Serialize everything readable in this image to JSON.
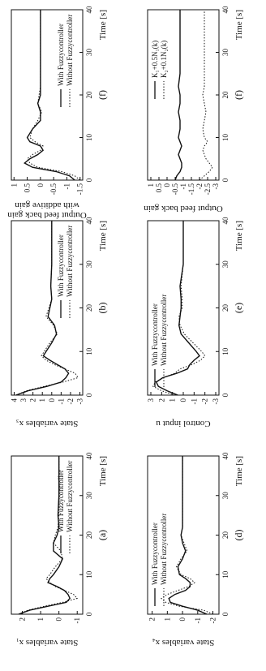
{
  "figure": {
    "legend_with": "With Fuzzycontroller",
    "legend_without": "Without Fuzzycontroller"
  },
  "chart_data": [
    {
      "id": "a",
      "type": "line",
      "caption": "(a)",
      "xlabel": "Time [s]",
      "ylabel": "State variables x₁",
      "xlim": [
        0,
        40
      ],
      "ylim": [
        -1.3,
        2.6
      ],
      "xticks": [
        0,
        10,
        20,
        30,
        40
      ],
      "yticks": [
        -1,
        0,
        1,
        2
      ],
      "legend": [
        "With Fuzzycontroller",
        "Without Fuzzycontroller"
      ],
      "legend_position": "bottom-right",
      "series": [
        {
          "name": "With Fuzzycontroller",
          "style": "solid",
          "x": [
            0,
            1,
            2,
            3,
            4,
            5,
            6,
            7,
            8,
            9,
            10,
            12,
            14,
            16,
            18,
            20,
            22,
            25,
            30,
            35,
            40
          ],
          "y": [
            2.2,
            1.6,
            0.6,
            -0.4,
            -0.6,
            -0.5,
            -0.3,
            0.1,
            0.6,
            0.5,
            0.3,
            0.0,
            -0.2,
            0.3,
            0.3,
            0.1,
            0.0,
            0.05,
            0.0,
            0.0,
            0.0
          ]
        },
        {
          "name": "Without Fuzzycontroller",
          "style": "dotted",
          "x": [
            0,
            1,
            2,
            3,
            4,
            5,
            6,
            7,
            8,
            9,
            10,
            12,
            14,
            16,
            18,
            20,
            22,
            25,
            30,
            35,
            40
          ],
          "y": [
            2.2,
            1.7,
            0.8,
            -0.2,
            -1.0,
            -0.8,
            -0.3,
            0.2,
            0.5,
            0.7,
            0.5,
            0.2,
            -0.2,
            -0.1,
            0.3,
            0.2,
            0.05,
            0.0,
            0.0,
            0.0,
            0.0
          ]
        }
      ]
    },
    {
      "id": "b",
      "type": "line",
      "caption": "(b)",
      "xlabel": "Time [s]",
      "ylabel": "State variables x₃",
      "xlim": [
        0,
        40
      ],
      "ylim": [
        -3.3,
        4.3
      ],
      "xticks": [
        0,
        10,
        20,
        30,
        40
      ],
      "yticks": [
        -3,
        -2,
        -1,
        0,
        1,
        2,
        3,
        4
      ],
      "legend": [
        "With Fuzzycontroller",
        "Without Fuzzycontroller"
      ],
      "legend_position": "bottom-right",
      "series": [
        {
          "name": "With Fuzzycontroller",
          "style": "solid",
          "x": [
            0,
            1,
            2,
            3,
            4,
            5,
            6,
            7,
            8,
            9,
            10,
            12,
            14,
            16,
            18,
            20,
            22,
            25,
            30,
            35,
            40
          ],
          "y": [
            3.8,
            2.5,
            0.5,
            -1.0,
            -1.5,
            -1.8,
            -1.4,
            -0.6,
            0.2,
            0.9,
            0.6,
            0.0,
            -0.5,
            -0.3,
            0.4,
            0.2,
            0.0,
            0.1,
            0.0,
            0.0,
            0.0
          ]
        },
        {
          "name": "Without Fuzzycontroller",
          "style": "dotted",
          "x": [
            0,
            1,
            2,
            3,
            4,
            5,
            6,
            7,
            8,
            9,
            10,
            12,
            14,
            16,
            18,
            20,
            22,
            25,
            30,
            35,
            40
          ],
          "y": [
            3.8,
            2.7,
            0.8,
            -1.2,
            -2.8,
            -2.5,
            -1.4,
            -0.3,
            0.6,
            1.1,
            0.8,
            0.2,
            -0.6,
            -0.2,
            0.6,
            0.3,
            0.0,
            0.1,
            0.0,
            0.0,
            0.0
          ]
        }
      ]
    },
    {
      "id": "f",
      "type": "line",
      "caption": "(f)",
      "xlabel": "Time [s]",
      "ylabel": "Output feed back gain",
      "ylabel_2": "with additive gain",
      "xlim": [
        0,
        40
      ],
      "ylim": [
        -1.6,
        1.1
      ],
      "xticks": [
        0,
        10,
        20,
        30,
        40
      ],
      "yticks": [
        -1.5,
        -1,
        -0.5,
        0,
        0.5,
        1
      ],
      "legend": [
        "With Fuzzycontroller",
        "Without Fuzzycontroller"
      ],
      "legend_position": "bottom-right",
      "series": [
        {
          "name": "With Fuzzycontroller",
          "style": "solid",
          "x": [
            0,
            1,
            2,
            3,
            4,
            5,
            6,
            7,
            8,
            9,
            10,
            12,
            14,
            16,
            18,
            20,
            22,
            25,
            30,
            35,
            40
          ],
          "y": [
            -1.3,
            -1.1,
            -0.6,
            0.3,
            0.6,
            0.4,
            0.1,
            -0.1,
            0.0,
            0.4,
            0.5,
            0.3,
            0.0,
            0.0,
            0.1,
            0.0,
            0.0,
            0.0,
            0.0,
            0.0,
            0.0
          ]
        },
        {
          "name": "Without Fuzzycontroller",
          "style": "dotted",
          "x": [
            0,
            1,
            2,
            3,
            4,
            5,
            6,
            7,
            8,
            9,
            10,
            12,
            14,
            16,
            18,
            20,
            22,
            25,
            30,
            35,
            40
          ],
          "y": [
            -1.5,
            -1.3,
            -0.8,
            0.1,
            0.4,
            0.5,
            0.3,
            0.0,
            -0.1,
            0.2,
            0.4,
            0.3,
            0.1,
            -0.05,
            0.1,
            0.05,
            0.0,
            0.0,
            0.0,
            0.0,
            0.0
          ]
        }
      ]
    },
    {
      "id": "d",
      "type": "line",
      "caption": "(d)",
      "xlabel": "Time [s]",
      "ylabel": "State variables x₄",
      "xlim": [
        0,
        40
      ],
      "ylim": [
        -2.4,
        2.3
      ],
      "xticks": [
        0,
        10,
        20,
        30,
        40
      ],
      "yticks": [
        -2,
        -1,
        0,
        1,
        2
      ],
      "legend": [
        "With Fuzzycontroller",
        "Without Fuzzycontroller"
      ],
      "legend_position": "top-left",
      "series": [
        {
          "name": "With Fuzzycontroller",
          "style": "solid",
          "x": [
            0,
            1,
            2,
            3,
            4,
            5,
            6,
            7,
            8,
            9,
            10,
            12,
            14,
            16,
            18,
            20,
            22,
            25,
            30,
            35,
            40
          ],
          "y": [
            -1.6,
            -1.0,
            0.0,
            0.8,
            0.9,
            0.5,
            -0.2,
            -0.5,
            -0.5,
            -0.2,
            0.2,
            0.3,
            0.0,
            -0.2,
            0.0,
            0.1,
            0.0,
            0.0,
            0.0,
            0.0,
            0.0
          ]
        },
        {
          "name": "Without Fuzzycontroller",
          "style": "dotted",
          "x": [
            0,
            1,
            2,
            3,
            4,
            5,
            6,
            7,
            8,
            9,
            10,
            12,
            14,
            16,
            18,
            20,
            22,
            25,
            30,
            35,
            40
          ],
          "y": [
            -2.0,
            -1.4,
            0.2,
            1.1,
            1.4,
            1.0,
            0.3,
            -0.4,
            -0.8,
            -0.5,
            0.1,
            0.4,
            0.1,
            -0.3,
            -0.1,
            0.1,
            0.0,
            0.0,
            0.0,
            0.0,
            0.0
          ]
        }
      ]
    },
    {
      "id": "e",
      "type": "line",
      "caption": "(e)",
      "xlabel": "Time [s]",
      "ylabel": "Control input u",
      "xlim": [
        0,
        40
      ],
      "ylim": [
        -3.3,
        3.3
      ],
      "xticks": [
        0,
        10,
        20,
        30,
        40
      ],
      "yticks": [
        -3,
        -2,
        -1,
        0,
        1,
        2,
        3
      ],
      "legend": [
        "With Fuzzycontroller",
        "Without Fuzzycontroller"
      ],
      "legend_position": "top-left",
      "series": [
        {
          "name": "With Fuzzycontroller",
          "style": "solid",
          "x": [
            0,
            1,
            2,
            3,
            4,
            5,
            6,
            7,
            8,
            9,
            10,
            12,
            14,
            16,
            18,
            20,
            22,
            25,
            30,
            35,
            40
          ],
          "y": [
            0.5,
            1.5,
            2.3,
            2.5,
            1.9,
            0.6,
            -0.4,
            -0.6,
            -1.0,
            -1.5,
            -1.2,
            -0.5,
            0.2,
            0.4,
            0.3,
            0.2,
            0.2,
            0.3,
            0.0,
            0.0,
            0.0
          ]
        },
        {
          "name": "Without Fuzzycontroller",
          "style": "dotted",
          "x": [
            0,
            1,
            2,
            3,
            4,
            5,
            6,
            7,
            8,
            9,
            10,
            12,
            14,
            16,
            18,
            20,
            22,
            25,
            30,
            35,
            40
          ],
          "y": [
            0.8,
            2.0,
            2.8,
            2.6,
            1.8,
            0.8,
            0.3,
            -0.8,
            -1.6,
            -2.0,
            -1.7,
            -0.9,
            -0.1,
            0.3,
            0.4,
            0.1,
            0.1,
            0.2,
            0.0,
            0.0,
            0.0
          ]
        }
      ]
    },
    {
      "id": "f2",
      "type": "line",
      "caption": "(f)",
      "xlabel": "Time [s]",
      "ylabel": "Output feed back gain",
      "xlim": [
        0,
        40
      ],
      "ylim": [
        -3.2,
        1.2
      ],
      "xticks": [
        0,
        10,
        20,
        30,
        40
      ],
      "yticks": [
        -3,
        -2.5,
        -2,
        -1.5,
        -1,
        -0.5,
        0,
        0.5,
        1
      ],
      "legend": [
        "K₁+0.5N₁(k)",
        "K₂+0.1N₂(k)"
      ],
      "legend_position": "top-right",
      "series": [
        {
          "name": "K₁+0.5N₁(k)",
          "style": "solid",
          "x": [
            0,
            1,
            2,
            3,
            4,
            5,
            6,
            7,
            8,
            9,
            10,
            12,
            14,
            16,
            18,
            20,
            22,
            25,
            30,
            35,
            40
          ],
          "y": [
            -0.5,
            -0.6,
            -0.8,
            -0.9,
            -0.9,
            -0.8,
            -0.7,
            -0.8,
            -0.9,
            -0.8,
            -0.7,
            -0.8,
            -0.8,
            -0.7,
            -0.8,
            -0.8,
            -0.7,
            -0.8,
            -0.8,
            -0.8,
            -0.8
          ]
        },
        {
          "name": "K₂+0.1N₂(k)",
          "style": "dotted",
          "x": [
            0,
            1,
            2,
            3,
            4,
            5,
            6,
            7,
            8,
            9,
            10,
            12,
            14,
            16,
            18,
            20,
            22,
            25,
            30,
            35,
            40
          ],
          "y": [
            -2.0,
            -2.3,
            -2.6,
            -2.8,
            -2.6,
            -2.4,
            -2.3,
            -2.2,
            -2.3,
            -2.5,
            -2.3,
            -2.2,
            -2.3,
            -2.4,
            -2.3,
            -2.2,
            -2.3,
            -2.3,
            -2.3,
            -2.3,
            -2.3
          ]
        }
      ]
    }
  ]
}
